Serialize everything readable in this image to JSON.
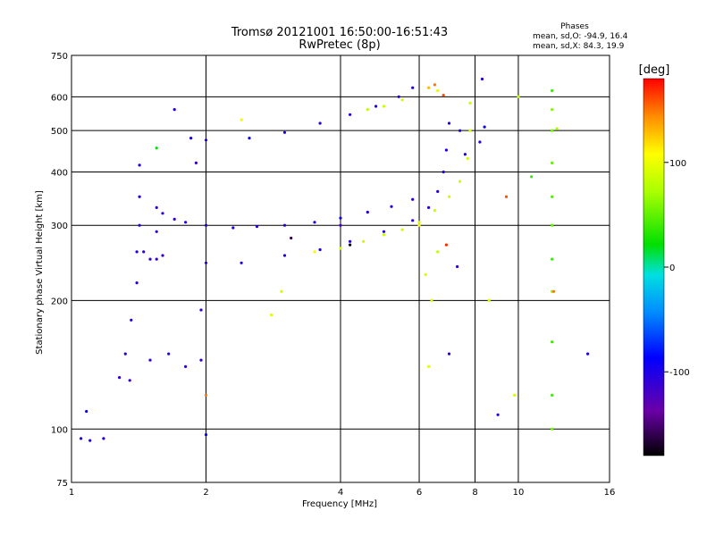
{
  "header": {
    "title": "Tromsø 20121001 16:50:00-16:51:43",
    "subtitle": "RwPretec (8p)"
  },
  "stats": {
    "heading": "Phases",
    "line_o": "mean, sd,O: -94.9, 16.4",
    "line_x": "mean, sd,X:  84.3, 19.9"
  },
  "colorbar": {
    "label": "[deg]",
    "ticks": [
      {
        "value": 100,
        "label": "100"
      },
      {
        "value": 0,
        "label": "0"
      },
      {
        "value": -100,
        "label": "-100"
      }
    ],
    "range": [
      -180,
      180
    ]
  },
  "chart_data": {
    "type": "scatter",
    "title": "Tromsø 20121001 16:50:00-16:51:43",
    "subtitle": "RwPretec (8p)",
    "xlabel": "Frequency [MHz]",
    "ylabel": "Stationary phase Virtual Height [km]",
    "x_scale": "log",
    "y_scale": "log",
    "xlim": [
      1,
      16
    ],
    "ylim": [
      75,
      750
    ],
    "x_ticks": [
      1,
      2,
      4,
      6,
      8,
      10,
      16
    ],
    "x_tick_labels": [
      "1",
      "2",
      "4",
      "6",
      "8",
      "10",
      "16"
    ],
    "y_ticks": [
      75,
      100,
      200,
      300,
      400,
      500,
      600,
      750
    ],
    "y_tick_labels": [
      "75",
      "100",
      "200",
      "300",
      "400",
      "500",
      "600",
      "750"
    ],
    "grid": true,
    "color_quantity": "phase [deg]",
    "series": [
      {
        "points": [
          {
            "f": 1.05,
            "h": 95,
            "p": -100
          },
          {
            "f": 1.1,
            "h": 94,
            "p": -100
          },
          {
            "f": 1.18,
            "h": 95,
            "p": -100
          },
          {
            "f": 1.08,
            "h": 110,
            "p": -90
          },
          {
            "f": 1.28,
            "h": 132,
            "p": -110
          },
          {
            "f": 1.32,
            "h": 150,
            "p": -105
          },
          {
            "f": 1.36,
            "h": 180,
            "p": -100
          },
          {
            "f": 1.4,
            "h": 220,
            "p": -100
          },
          {
            "f": 1.4,
            "h": 260,
            "p": -100
          },
          {
            "f": 1.42,
            "h": 300,
            "p": -105
          },
          {
            "f": 1.42,
            "h": 350,
            "p": -100
          },
          {
            "f": 1.42,
            "h": 415,
            "p": -100
          },
          {
            "f": 1.45,
            "h": 260,
            "p": -110
          },
          {
            "f": 1.5,
            "h": 250,
            "p": -110
          },
          {
            "f": 1.55,
            "h": 330,
            "p": -110
          },
          {
            "f": 1.55,
            "h": 290,
            "p": -110
          },
          {
            "f": 1.55,
            "h": 250,
            "p": -110
          },
          {
            "f": 1.6,
            "h": 320,
            "p": -110
          },
          {
            "f": 1.7,
            "h": 310,
            "p": -110
          },
          {
            "f": 1.8,
            "h": 305,
            "p": -105
          },
          {
            "f": 2.0,
            "h": 300,
            "p": -100
          },
          {
            "f": 2.3,
            "h": 296,
            "p": -100
          },
          {
            "f": 2.6,
            "h": 298,
            "p": -100
          },
          {
            "f": 3.0,
            "h": 300,
            "p": -100
          },
          {
            "f": 3.5,
            "h": 305,
            "p": -100
          },
          {
            "f": 4.0,
            "h": 312,
            "p": -95
          },
          {
            "f": 4.6,
            "h": 322,
            "p": -100
          },
          {
            "f": 5.2,
            "h": 332,
            "p": -105
          },
          {
            "f": 5.8,
            "h": 345,
            "p": -100
          },
          {
            "f": 1.6,
            "h": 255,
            "p": -110
          },
          {
            "f": 2.0,
            "h": 245,
            "p": -105
          },
          {
            "f": 2.4,
            "h": 245,
            "p": -100
          },
          {
            "f": 3.0,
            "h": 255,
            "p": -100
          },
          {
            "f": 3.6,
            "h": 263,
            "p": -100
          },
          {
            "f": 4.2,
            "h": 275,
            "p": -100
          },
          {
            "f": 5.0,
            "h": 290,
            "p": -100
          },
          {
            "f": 5.8,
            "h": 308,
            "p": -100
          },
          {
            "f": 6.3,
            "h": 330,
            "p": -100
          },
          {
            "f": 6.6,
            "h": 360,
            "p": -100
          },
          {
            "f": 6.8,
            "h": 400,
            "p": -100
          },
          {
            "f": 6.9,
            "h": 450,
            "p": -100
          },
          {
            "f": 7.0,
            "h": 520,
            "p": -100
          },
          {
            "f": 2.5,
            "h": 480,
            "p": -95
          },
          {
            "f": 3.0,
            "h": 495,
            "p": -100
          },
          {
            "f": 3.6,
            "h": 520,
            "p": -100
          },
          {
            "f": 4.2,
            "h": 545,
            "p": -100
          },
          {
            "f": 4.8,
            "h": 570,
            "p": -100
          },
          {
            "f": 5.4,
            "h": 600,
            "p": -100
          },
          {
            "f": 5.8,
            "h": 630,
            "p": -100
          },
          {
            "f": 1.85,
            "h": 480,
            "p": -95
          },
          {
            "f": 2.0,
            "h": 475,
            "p": -100
          },
          {
            "f": 1.7,
            "h": 560,
            "p": -100
          },
          {
            "f": 1.35,
            "h": 130,
            "p": -110
          },
          {
            "f": 1.5,
            "h": 145,
            "p": -110
          },
          {
            "f": 1.65,
            "h": 150,
            "p": -105
          },
          {
            "f": 1.8,
            "h": 140,
            "p": -110
          },
          {
            "f": 1.95,
            "h": 145,
            "p": -110
          },
          {
            "f": 1.95,
            "h": 190,
            "p": -110
          },
          {
            "f": 1.9,
            "h": 420,
            "p": -110
          },
          {
            "f": 2.0,
            "h": 97,
            "p": -90
          },
          {
            "f": 7.4,
            "h": 500,
            "p": -100
          },
          {
            "f": 7.6,
            "h": 440,
            "p": -100
          },
          {
            "f": 8.2,
            "h": 470,
            "p": -100
          },
          {
            "f": 8.4,
            "h": 510,
            "p": -95
          },
          {
            "f": 8.3,
            "h": 660,
            "p": -100
          },
          {
            "f": 9.0,
            "h": 108,
            "p": -100
          },
          {
            "f": 14.3,
            "h": 150,
            "p": -100
          },
          {
            "f": 3.1,
            "h": 280,
            "p": -160
          },
          {
            "f": 4.2,
            "h": 270,
            "p": -175
          },
          {
            "f": 4.0,
            "h": 300,
            "p": -120
          },
          {
            "f": 7.0,
            "h": 150,
            "p": -110
          },
          {
            "f": 7.3,
            "h": 240,
            "p": -110
          }
        ]
      },
      {
        "points": [
          {
            "f": 4.0,
            "h": 265,
            "p": 85
          },
          {
            "f": 4.5,
            "h": 275,
            "p": 85
          },
          {
            "f": 5.0,
            "h": 285,
            "p": 85
          },
          {
            "f": 5.5,
            "h": 293,
            "p": 85
          },
          {
            "f": 6.0,
            "h": 305,
            "p": 90
          },
          {
            "f": 6.5,
            "h": 325,
            "p": 85
          },
          {
            "f": 7.0,
            "h": 350,
            "p": 85
          },
          {
            "f": 7.4,
            "h": 380,
            "p": 85
          },
          {
            "f": 7.7,
            "h": 430,
            "p": 85
          },
          {
            "f": 7.8,
            "h": 500,
            "p": 85
          },
          {
            "f": 7.8,
            "h": 580,
            "p": 85
          },
          {
            "f": 4.6,
            "h": 560,
            "p": 80
          },
          {
            "f": 5.0,
            "h": 570,
            "p": 85
          },
          {
            "f": 5.5,
            "h": 590,
            "p": 85
          },
          {
            "f": 6.6,
            "h": 620,
            "p": 95
          },
          {
            "f": 6.5,
            "h": 640,
            "p": 150
          },
          {
            "f": 6.8,
            "h": 605,
            "p": 160
          },
          {
            "f": 6.3,
            "h": 630,
            "p": 130
          },
          {
            "f": 6.2,
            "h": 230,
            "p": 90
          },
          {
            "f": 6.6,
            "h": 260,
            "p": 80
          },
          {
            "f": 6.4,
            "h": 200,
            "p": 90
          },
          {
            "f": 6.3,
            "h": 140,
            "p": 95
          },
          {
            "f": 10.0,
            "h": 600,
            "p": 80
          },
          {
            "f": 11.9,
            "h": 620,
            "p": 40
          },
          {
            "f": 11.9,
            "h": 560,
            "p": 60
          },
          {
            "f": 11.9,
            "h": 500,
            "p": 55
          },
          {
            "f": 11.9,
            "h": 420,
            "p": 50
          },
          {
            "f": 11.9,
            "h": 350,
            "p": 45
          },
          {
            "f": 11.9,
            "h": 300,
            "p": 50
          },
          {
            "f": 11.9,
            "h": 250,
            "p": 40
          },
          {
            "f": 11.9,
            "h": 210,
            "p": 60
          },
          {
            "f": 11.9,
            "h": 160,
            "p": 40
          },
          {
            "f": 11.9,
            "h": 120,
            "p": 40
          },
          {
            "f": 11.9,
            "h": 100,
            "p": 55
          },
          {
            "f": 10.7,
            "h": 390,
            "p": 40
          },
          {
            "f": 9.8,
            "h": 120,
            "p": 90
          },
          {
            "f": 12.2,
            "h": 505,
            "p": 70
          },
          {
            "f": 12.0,
            "h": 210,
            "p": 150
          },
          {
            "f": 2.4,
            "h": 530,
            "p": 100
          },
          {
            "f": 3.5,
            "h": 260,
            "p": 110
          },
          {
            "f": 1.55,
            "h": 455,
            "p": 20
          },
          {
            "f": 2.0,
            "h": 120,
            "p": 150
          },
          {
            "f": 2.8,
            "h": 185,
            "p": 95
          },
          {
            "f": 2.95,
            "h": 210,
            "p": 85
          },
          {
            "f": 6.0,
            "h": 300,
            "p": 110
          },
          {
            "f": 9.4,
            "h": 350,
            "p": 160
          },
          {
            "f": 6.9,
            "h": 270,
            "p": 170
          },
          {
            "f": 8.6,
            "h": 200,
            "p": 90
          }
        ]
      }
    ]
  }
}
